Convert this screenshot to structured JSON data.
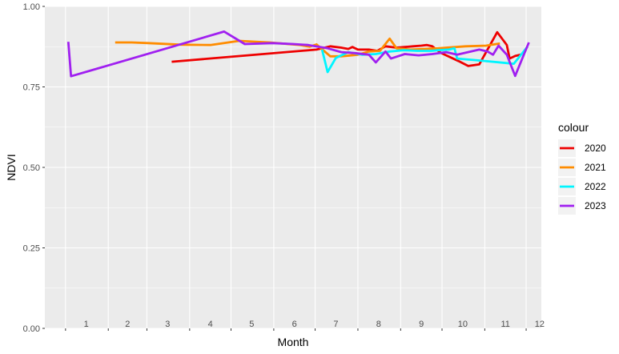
{
  "chart_data": {
    "type": "line",
    "xlabel": "Month",
    "ylabel": "NDVI",
    "ylim": [
      0,
      1
    ],
    "y_ticks": [
      "0.00",
      "0.25",
      "0.50",
      "0.75",
      "1.00"
    ],
    "month_labels": [
      "1",
      "2",
      "3",
      "4",
      "5",
      "6",
      "7",
      "8",
      "9",
      "10",
      "11",
      "12"
    ],
    "legend_title": "colour",
    "legend_position": "right",
    "grid": true,
    "series": [
      {
        "name": "2020",
        "color": "#ee0000",
        "points": [
          {
            "day": 77,
            "ndvi": 0.828
          },
          {
            "day": 182,
            "ndvi": 0.866
          },
          {
            "day": 192,
            "ndvi": 0.876
          },
          {
            "day": 200,
            "ndvi": 0.872
          },
          {
            "day": 205,
            "ndvi": 0.868
          },
          {
            "day": 208,
            "ndvi": 0.874
          },
          {
            "day": 212,
            "ndvi": 0.866
          },
          {
            "day": 220,
            "ndvi": 0.866
          },
          {
            "day": 226,
            "ndvi": 0.862
          },
          {
            "day": 232,
            "ndvi": 0.876
          },
          {
            "day": 240,
            "ndvi": 0.872
          },
          {
            "day": 246,
            "ndvi": 0.874
          },
          {
            "day": 252,
            "ndvi": 0.876
          },
          {
            "day": 258,
            "ndvi": 0.878
          },
          {
            "day": 262,
            "ndvi": 0.88
          },
          {
            "day": 266,
            "ndvi": 0.876
          },
          {
            "day": 272,
            "ndvi": 0.856
          },
          {
            "day": 285,
            "ndvi": 0.83
          },
          {
            "day": 292,
            "ndvi": 0.815
          },
          {
            "day": 300,
            "ndvi": 0.82
          },
          {
            "day": 313,
            "ndvi": 0.92
          },
          {
            "day": 320,
            "ndvi": 0.88
          },
          {
            "day": 322,
            "ndvi": 0.838
          },
          {
            "day": 326,
            "ndvi": 0.846
          },
          {
            "day": 330,
            "ndvi": 0.85
          }
        ]
      },
      {
        "name": "2021",
        "color": "#ff8c00",
        "points": [
          {
            "day": 36,
            "ndvi": 0.888
          },
          {
            "day": 48,
            "ndvi": 0.888
          },
          {
            "day": 60,
            "ndvi": 0.886
          },
          {
            "day": 84,
            "ndvi": 0.881
          },
          {
            "day": 105,
            "ndvi": 0.88
          },
          {
            "day": 126,
            "ndvi": 0.893
          },
          {
            "day": 148,
            "ndvi": 0.888
          },
          {
            "day": 170,
            "ndvi": 0.88
          },
          {
            "day": 177,
            "ndvi": 0.875
          },
          {
            "day": 182,
            "ndvi": 0.882
          },
          {
            "day": 192,
            "ndvi": 0.845
          },
          {
            "day": 200,
            "ndvi": 0.845
          },
          {
            "day": 212,
            "ndvi": 0.85
          },
          {
            "day": 220,
            "ndvi": 0.86
          },
          {
            "day": 228,
            "ndvi": 0.862
          },
          {
            "day": 235,
            "ndvi": 0.9
          },
          {
            "day": 240,
            "ndvi": 0.87
          },
          {
            "day": 250,
            "ndvi": 0.866
          },
          {
            "day": 270,
            "ndvi": 0.87
          },
          {
            "day": 290,
            "ndvi": 0.876
          },
          {
            "day": 305,
            "ndvi": 0.878
          },
          {
            "day": 315,
            "ndvi": 0.885
          }
        ]
      },
      {
        "name": "2022",
        "color": "#00f5ff",
        "points": [
          {
            "day": 186,
            "ndvi": 0.866
          },
          {
            "day": 190,
            "ndvi": 0.796
          },
          {
            "day": 196,
            "ndvi": 0.84
          },
          {
            "day": 205,
            "ndvi": 0.858
          },
          {
            "day": 215,
            "ndvi": 0.85
          },
          {
            "day": 225,
            "ndvi": 0.852
          },
          {
            "day": 235,
            "ndvi": 0.86
          },
          {
            "day": 245,
            "ndvi": 0.864
          },
          {
            "day": 255,
            "ndvi": 0.862
          },
          {
            "day": 265,
            "ndvi": 0.862
          },
          {
            "day": 270,
            "ndvi": 0.864
          },
          {
            "day": 278,
            "ndvi": 0.866
          },
          {
            "day": 282,
            "ndvi": 0.87
          },
          {
            "day": 284,
            "ndvi": 0.838
          },
          {
            "day": 300,
            "ndvi": 0.832
          },
          {
            "day": 325,
            "ndvi": 0.822
          },
          {
            "day": 335,
            "ndvi": 0.875
          }
        ]
      },
      {
        "name": "2023",
        "color": "#a020f0",
        "points": [
          {
            "day": 2,
            "ndvi": 0.89
          },
          {
            "day": 4,
            "ndvi": 0.783
          },
          {
            "day": 115,
            "ndvi": 0.922
          },
          {
            "day": 130,
            "ndvi": 0.883
          },
          {
            "day": 150,
            "ndvi": 0.886
          },
          {
            "day": 165,
            "ndvi": 0.883
          },
          {
            "day": 176,
            "ndvi": 0.88
          },
          {
            "day": 190,
            "ndvi": 0.87
          },
          {
            "day": 200,
            "ndvi": 0.858
          },
          {
            "day": 210,
            "ndvi": 0.855
          },
          {
            "day": 220,
            "ndvi": 0.85
          },
          {
            "day": 225,
            "ndvi": 0.826
          },
          {
            "day": 232,
            "ndvi": 0.86
          },
          {
            "day": 236,
            "ndvi": 0.838
          },
          {
            "day": 246,
            "ndvi": 0.852
          },
          {
            "day": 256,
            "ndvi": 0.848
          },
          {
            "day": 266,
            "ndvi": 0.852
          },
          {
            "day": 276,
            "ndvi": 0.858
          },
          {
            "day": 284,
            "ndvi": 0.85
          },
          {
            "day": 300,
            "ndvi": 0.866
          },
          {
            "day": 306,
            "ndvi": 0.86
          },
          {
            "day": 310,
            "ndvi": 0.85
          },
          {
            "day": 314,
            "ndvi": 0.878
          },
          {
            "day": 320,
            "ndvi": 0.85
          },
          {
            "day": 326,
            "ndvi": 0.784
          },
          {
            "day": 334,
            "ndvi": 0.868
          },
          {
            "day": 336,
            "ndvi": 0.888
          }
        ]
      }
    ]
  }
}
